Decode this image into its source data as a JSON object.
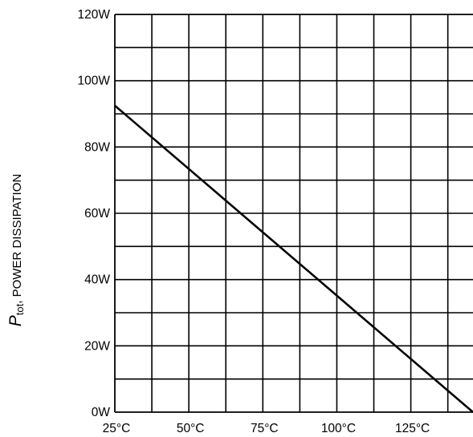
{
  "chart_data": {
    "type": "line",
    "title": "",
    "xlabel": "",
    "ylabel": {
      "symbol": "P",
      "subscript": "tot",
      "text": ", POWER DISSIPATION"
    },
    "xlim": [
      25,
      146
    ],
    "ylim": [
      0,
      120
    ],
    "x_ticks": [
      25,
      50,
      75,
      100,
      125
    ],
    "x_tick_labels": [
      "25°C",
      "50°C",
      "75°C",
      "100°C",
      "125°C"
    ],
    "y_ticks": [
      0,
      20,
      40,
      60,
      80,
      100,
      120
    ],
    "y_tick_labels": [
      "0W",
      "20W",
      "40W",
      "60W",
      "80W",
      "100W",
      "120W"
    ],
    "grid": true,
    "grid_x_step": 12.5,
    "grid_y_step": 10,
    "series": [
      {
        "x": [
          25,
          146
        ],
        "y": [
          92.5,
          0
        ]
      }
    ],
    "colors": {
      "line": "#000000",
      "grid": "#000000",
      "background": "#ffffff"
    }
  }
}
